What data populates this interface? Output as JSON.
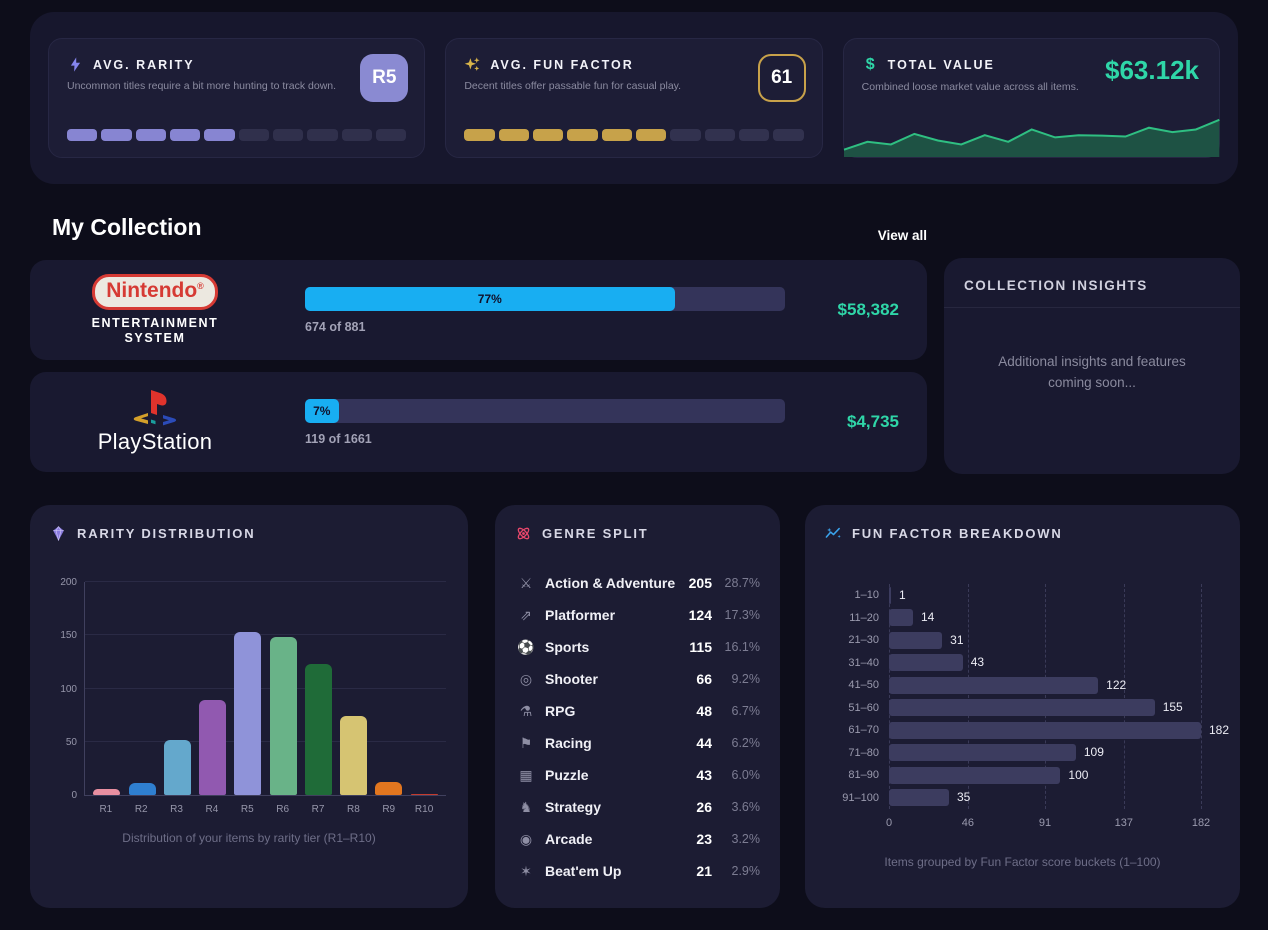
{
  "colors": {
    "accent_teal": "#2fd6a8",
    "accent_cyan": "#18aef2",
    "accent_lavender": "#8a8ad2",
    "accent_gold": "#c8a24a",
    "segment_off": "#30304c",
    "fun_bar": "#3c3c5f"
  },
  "stats": {
    "rarity": {
      "icon": "lightning-bolt-icon",
      "title": "AVG. RARITY",
      "subtitle": "Uncommon titles require a bit more hunting to track down.",
      "badge": "R5",
      "segments": {
        "total": 10,
        "filled": 5,
        "on": "#8785d2",
        "off": "#30304c"
      }
    },
    "fun": {
      "icon": "sparkles-icon",
      "title": "AVG. FUN FACTOR",
      "subtitle": "Decent titles offer passable fun for casual play.",
      "badge": "61",
      "segments": {
        "total": 10,
        "filled": 6,
        "on": "#c7a24a",
        "off": "#32324f"
      }
    },
    "value": {
      "icon": "dollar-icon",
      "title": "TOTAL VALUE",
      "subtitle": "Combined loose market value across all items.",
      "amount": "$63.12k",
      "spark": [
        12,
        30,
        24,
        48,
        33,
        24,
        45,
        30,
        58,
        40,
        45,
        44,
        42,
        62,
        52,
        58,
        80
      ]
    }
  },
  "collection": {
    "heading": "My Collection",
    "view_all": "View all",
    "rows": [
      {
        "platform": "Nintendo Entertainment System",
        "brand": "Nintendo",
        "brand_mark": "®",
        "sub1": "ENTERTAINMENT",
        "sub2": "SYSTEM",
        "percent": 77,
        "percent_label": "77%",
        "progress_text": "674 of 881",
        "value": "$58,382"
      },
      {
        "platform": "PlayStation",
        "brand": "PlayStation",
        "percent": 7,
        "percent_label": "7%",
        "progress_text": "119 of 1661",
        "value": "$4,735"
      }
    ],
    "insights": {
      "title": "COLLECTION INSIGHTS",
      "body": "Additional insights and features coming soon..."
    }
  },
  "chart_data": [
    {
      "type": "bar",
      "title": "RARITY DISTRIBUTION",
      "panel_icon": "gem-icon",
      "categories": [
        "R1",
        "R2",
        "R3",
        "R4",
        "R5",
        "R6",
        "R7",
        "R8",
        "R9",
        "R10"
      ],
      "values": [
        6,
        11,
        52,
        89,
        153,
        148,
        123,
        74,
        12,
        1
      ],
      "colors": [
        "#e88fa0",
        "#2f7fd0",
        "#64a8cc",
        "#9159b0",
        "#8f93d9",
        "#69b388",
        "#1f6b38",
        "#d6c472",
        "#e2761f",
        "#c43b2e"
      ],
      "ylim": [
        0,
        200
      ],
      "yticks": [
        0,
        50,
        100,
        150,
        200
      ],
      "grid": true,
      "caption": "Distribution of your items by rarity tier (R1–R10)"
    },
    {
      "type": "table",
      "title": "GENRE SPLIT",
      "panel_icon": "atom-icon",
      "rows": [
        {
          "icon": "swords-icon",
          "glyph": "⚔",
          "label": "Action & Adventure",
          "count": 205,
          "pct": "28.7%"
        },
        {
          "icon": "runner-icon",
          "glyph": "⇗",
          "label": "Platformer",
          "count": 124,
          "pct": "17.3%"
        },
        {
          "icon": "soccer-ball-icon",
          "glyph": "⚽",
          "label": "Sports",
          "count": 115,
          "pct": "16.1%"
        },
        {
          "icon": "crosshair-icon",
          "glyph": "◎",
          "label": "Shooter",
          "count": 66,
          "pct": "9.2%"
        },
        {
          "icon": "potion-icon",
          "glyph": "⚗",
          "label": "RPG",
          "count": 48,
          "pct": "6.7%"
        },
        {
          "icon": "race-flag-icon",
          "glyph": "⚑",
          "label": "Racing",
          "count": 44,
          "pct": "6.2%"
        },
        {
          "icon": "puzzle-icon",
          "glyph": "▦",
          "label": "Puzzle",
          "count": 43,
          "pct": "6.0%"
        },
        {
          "icon": "chess-knight-icon",
          "glyph": "♞",
          "label": "Strategy",
          "count": 26,
          "pct": "3.6%"
        },
        {
          "icon": "joystick-icon",
          "glyph": "◉",
          "label": "Arcade",
          "count": 23,
          "pct": "3.2%"
        },
        {
          "icon": "burst-icon",
          "glyph": "✶",
          "label": "Beat'em Up",
          "count": 21,
          "pct": "2.9%"
        }
      ]
    },
    {
      "type": "bar-horizontal",
      "title": "FUN FACTOR BREAKDOWN",
      "panel_icon": "trend-icon",
      "categories": [
        "1–10",
        "11–20",
        "21–30",
        "31–40",
        "41–50",
        "51–60",
        "61–70",
        "71–80",
        "81–90",
        "91–100"
      ],
      "values": [
        1,
        14,
        31,
        43,
        122,
        155,
        182,
        109,
        100,
        35
      ],
      "xlim": [
        0,
        182
      ],
      "xticks": [
        0,
        46,
        91,
        137,
        182
      ],
      "grid": true,
      "caption": "Items grouped by Fun Factor score buckets (1–100)"
    }
  ]
}
